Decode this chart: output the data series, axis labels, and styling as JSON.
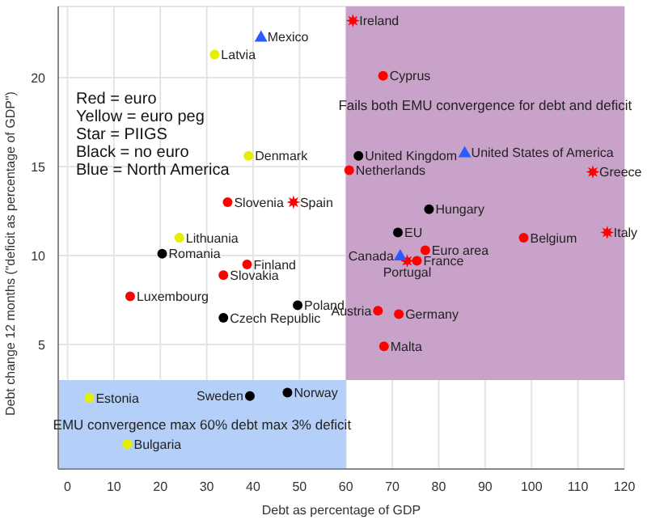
{
  "chart_data": {
    "type": "scatter",
    "xlabel": "Debt as percentage of GDP",
    "ylabel": "Debt change 12 months (\"deficit as percentage of GDP\")",
    "xlim": [
      -2,
      120
    ],
    "ylim": [
      -2,
      24
    ],
    "xticks": [
      0,
      10,
      20,
      30,
      40,
      50,
      60,
      70,
      80,
      90,
      100,
      110,
      120
    ],
    "yticks": [
      5,
      10,
      15,
      20
    ],
    "grid": true,
    "series": [
      {
        "color": "#ff0000",
        "marker": "circle",
        "x": [
          68.0,
          60.7,
          98.3,
          77.1,
          75.3,
          34.5,
          38.7,
          33.6,
          13.5,
          66.9,
          71.4,
          68.2
        ],
        "values": [
          20.1,
          14.8,
          11.0,
          10.3,
          9.7,
          13.0,
          9.5,
          8.9,
          7.7,
          6.9,
          6.7,
          4.9
        ]
      },
      {
        "color": "#ff0000",
        "marker": "star",
        "x": [
          61.5,
          48.7,
          113.2,
          116.3,
          73.2
        ],
        "values": [
          23.2,
          13.0,
          14.7,
          11.3,
          9.7
        ]
      },
      {
        "color": "#e5f000",
        "marker": "circle",
        "x": [
          31.7,
          39.0,
          24.1,
          4.7,
          12.9
        ],
        "values": [
          21.3,
          15.6,
          11.0,
          2.0,
          -0.6
        ]
      },
      {
        "color": "#000000",
        "marker": "circle",
        "x": [
          62.7,
          77.9,
          71.2,
          20.4,
          49.6,
          33.6,
          39.3,
          47.4
        ],
        "values": [
          15.6,
          12.6,
          11.3,
          10.1,
          7.2,
          6.5,
          2.1,
          2.3
        ]
      },
      {
        "color": "#2a5bff",
        "marker": "triangle",
        "x": [
          41.7,
          85.6,
          71.7
        ],
        "values": [
          22.3,
          15.8,
          10.0
        ]
      }
    ],
    "bands": [
      {
        "axis": "x",
        "from": 60,
        "to": 120,
        "label": "Fails both EMU convergence for debt and deficit",
        "color": "#c8a2c8"
      },
      {
        "axis": "y",
        "from": -2,
        "to": 3,
        "label": "EMU convergence max 60% debt max 3% deficit",
        "color": "#b4cff8"
      }
    ],
    "annotations": [
      "Red = euro",
      "Yellow = euro peg",
      "Star = PIIGS",
      "Black = no euro",
      "Blue = North America",
      {
        "text": "Mexico",
        "x": 41.7,
        "y": 22.3
      },
      {
        "text": "Latvia",
        "x": 31.7,
        "y": 21.3
      },
      {
        "text": "Denmark",
        "x": 39.0,
        "y": 15.6
      },
      {
        "text": "Slovenia",
        "x": 34.5,
        "y": 13.0
      },
      {
        "text": "Spain",
        "x": 48.7,
        "y": 13.0
      },
      {
        "text": "Lithuania",
        "x": 24.1,
        "y": 11.0
      },
      {
        "text": "Ireland",
        "x": 61.5,
        "y": 23.2
      },
      {
        "text": "Cyprus",
        "x": 68.0,
        "y": 20.1
      },
      {
        "text": "United Kingdom",
        "x": 62.7,
        "y": 15.6
      },
      {
        "text": "United States of America",
        "x": 85.6,
        "y": 15.8
      },
      {
        "text": "Netherlands",
        "x": 60.7,
        "y": 14.8
      },
      {
        "text": "Greece",
        "x": 113.2,
        "y": 14.7
      },
      {
        "text": "Hungary",
        "x": 77.9,
        "y": 12.6
      },
      {
        "text": "EU",
        "x": 71.2,
        "y": 11.3
      },
      {
        "text": "Belgium",
        "x": 98.3,
        "y": 11.0
      },
      {
        "text": "Italy",
        "x": 116.3,
        "y": 11.3
      },
      {
        "text": "Romania",
        "x": 20.4,
        "y": 10.1
      },
      {
        "text": "Finland",
        "x": 38.7,
        "y": 9.5
      },
      {
        "text": "Slovakia",
        "x": 33.6,
        "y": 8.9
      },
      {
        "text": "Luxembourg",
        "x": 13.5,
        "y": 7.7
      },
      {
        "text": "Poland",
        "x": 49.6,
        "y": 7.2
      },
      {
        "text": "Czech Republic",
        "x": 33.6,
        "y": 6.5
      },
      {
        "text": "Estonia",
        "x": 4.7,
        "y": 2.0
      },
      {
        "text": "Sweden",
        "x": 39.3,
        "y": 2.1
      },
      {
        "text": "Norway",
        "x": 47.4,
        "y": 2.3
      },
      {
        "text": "Bulgaria",
        "x": 12.9,
        "y": -0.6
      },
      {
        "text": "Euro area",
        "x": 77.1,
        "y": 10.3
      },
      {
        "text": "Canada",
        "x": 71.7,
        "y": 10.0
      },
      {
        "text": "France",
        "x": 75.3,
        "y": 9.7
      },
      {
        "text": "Portugal",
        "x": 73.2,
        "y": 9.7
      },
      {
        "text": "Austria",
        "x": 66.9,
        "y": 6.9
      },
      {
        "text": "Germany",
        "x": 71.4,
        "y": 6.7
      },
      {
        "text": "Malta",
        "x": 68.2,
        "y": 4.9
      }
    ]
  }
}
